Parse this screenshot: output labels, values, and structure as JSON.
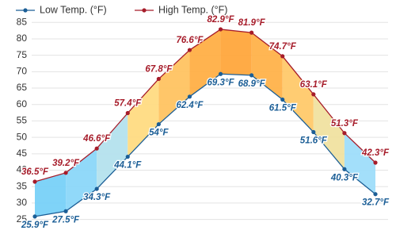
{
  "chart_data": {
    "type": "line",
    "categories": [
      null,
      null,
      null,
      null,
      null,
      null,
      null,
      null,
      null,
      null,
      null,
      null
    ],
    "series": [
      {
        "name": "Low Temp. (°F)",
        "color": "#1b5e96",
        "values": [
          25.9,
          27.5,
          34.3,
          44.1,
          54,
          62.4,
          69.3,
          68.9,
          61.5,
          51.6,
          40.3,
          32.7
        ],
        "value_labels": [
          "25.9°F",
          "27.5°F",
          "34.3°F",
          "44.1°F",
          "54°F",
          "62.4°F",
          "69.3°F",
          "68.9°F",
          "61.5°F",
          "51.6°F",
          "40.3°F",
          "32.7°F"
        ]
      },
      {
        "name": "High Temp. (°F)",
        "color": "#a61c2a",
        "values": [
          36.5,
          39.2,
          46.6,
          57.4,
          67.8,
          76.6,
          82.9,
          81.9,
          74.7,
          63.1,
          51.3,
          42.3
        ],
        "value_labels": [
          "36.5°F",
          "39.2°F",
          "46.6°F",
          "57.4°F",
          "67.8°F",
          "76.6°F",
          "82.9°F",
          "81.9°F",
          "74.7°F",
          "63.1°F",
          "51.3°F",
          "42.3°F"
        ]
      }
    ],
    "ylim": [
      22,
      87
    ],
    "yticks": [
      25,
      30,
      35,
      40,
      45,
      50,
      55,
      60,
      65,
      70,
      75,
      80,
      85
    ],
    "grid": true,
    "legend": "top"
  }
}
